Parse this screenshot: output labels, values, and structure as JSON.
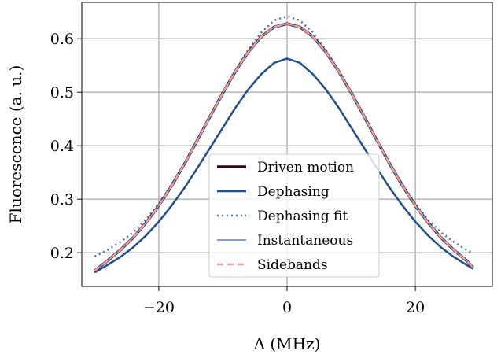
{
  "chart_data": {
    "type": "line",
    "title": "",
    "xlabel": "Δ (MHz)",
    "ylabel": "Fluorescence (a. u.)",
    "xlim": [
      -32,
      32
    ],
    "ylim": [
      0.137,
      0.668
    ],
    "xticks": [
      -20,
      0,
      20
    ],
    "xtick_labels": [
      "−20",
      "0",
      "20"
    ],
    "yticks": [
      0.2,
      0.3,
      0.4,
      0.5,
      0.6
    ],
    "ytick_labels": [
      "0.2",
      "0.3",
      "0.4",
      "0.5",
      "0.6"
    ],
    "grid": true,
    "legend_position": "bottom-center",
    "x": [
      -30,
      -28,
      -26,
      -24,
      -22,
      -20,
      -18,
      -16,
      -14,
      -12,
      -10,
      -8,
      -6,
      -4,
      -2,
      0,
      2,
      4,
      6,
      8,
      10,
      12,
      14,
      16,
      18,
      20,
      22,
      24,
      26,
      28,
      29
    ],
    "series": [
      {
        "name": "Driven motion",
        "color": "#2a0a1e",
        "style": "solid",
        "values": [
          0.166,
          0.185,
          0.205,
          0.228,
          0.256,
          0.288,
          0.325,
          0.366,
          0.41,
          0.455,
          0.499,
          0.54,
          0.576,
          0.604,
          0.622,
          0.628,
          0.622,
          0.604,
          0.576,
          0.54,
          0.499,
          0.455,
          0.41,
          0.366,
          0.325,
          0.288,
          0.256,
          0.228,
          0.205,
          0.185,
          0.172
        ]
      },
      {
        "name": "Dephasing",
        "color": "#1f4e8c",
        "style": "solid",
        "values": [
          0.163,
          0.177,
          0.192,
          0.21,
          0.232,
          0.258,
          0.288,
          0.321,
          0.358,
          0.396,
          0.434,
          0.472,
          0.506,
          0.534,
          0.555,
          0.563,
          0.555,
          0.534,
          0.506,
          0.472,
          0.434,
          0.396,
          0.358,
          0.321,
          0.288,
          0.258,
          0.232,
          0.21,
          0.192,
          0.177,
          0.17
        ]
      },
      {
        "name": "Dephasing fit",
        "color": "#4c72b0",
        "style": "dotted",
        "values": [
          0.193,
          0.205,
          0.22,
          0.238,
          0.262,
          0.292,
          0.328,
          0.366,
          0.409,
          0.454,
          0.499,
          0.541,
          0.58,
          0.612,
          0.634,
          0.642,
          0.634,
          0.612,
          0.58,
          0.541,
          0.499,
          0.454,
          0.409,
          0.366,
          0.328,
          0.292,
          0.262,
          0.238,
          0.22,
          0.205,
          0.199
        ]
      },
      {
        "name": "Instantaneous",
        "color": "#7f9fc8",
        "style": "solid",
        "values": [
          0.166,
          0.185,
          0.205,
          0.228,
          0.256,
          0.288,
          0.325,
          0.366,
          0.41,
          0.455,
          0.499,
          0.54,
          0.576,
          0.604,
          0.622,
          0.628,
          0.622,
          0.604,
          0.576,
          0.54,
          0.499,
          0.455,
          0.41,
          0.366,
          0.325,
          0.288,
          0.256,
          0.228,
          0.205,
          0.185,
          0.172
        ]
      },
      {
        "name": "Sidebands",
        "color": "#ff9a9a",
        "style": "dashed",
        "values": [
          0.166,
          0.185,
          0.205,
          0.228,
          0.256,
          0.288,
          0.325,
          0.366,
          0.41,
          0.455,
          0.499,
          0.54,
          0.576,
          0.604,
          0.622,
          0.628,
          0.622,
          0.604,
          0.576,
          0.54,
          0.499,
          0.455,
          0.41,
          0.366,
          0.325,
          0.288,
          0.256,
          0.228,
          0.205,
          0.185,
          0.172
        ]
      }
    ]
  }
}
